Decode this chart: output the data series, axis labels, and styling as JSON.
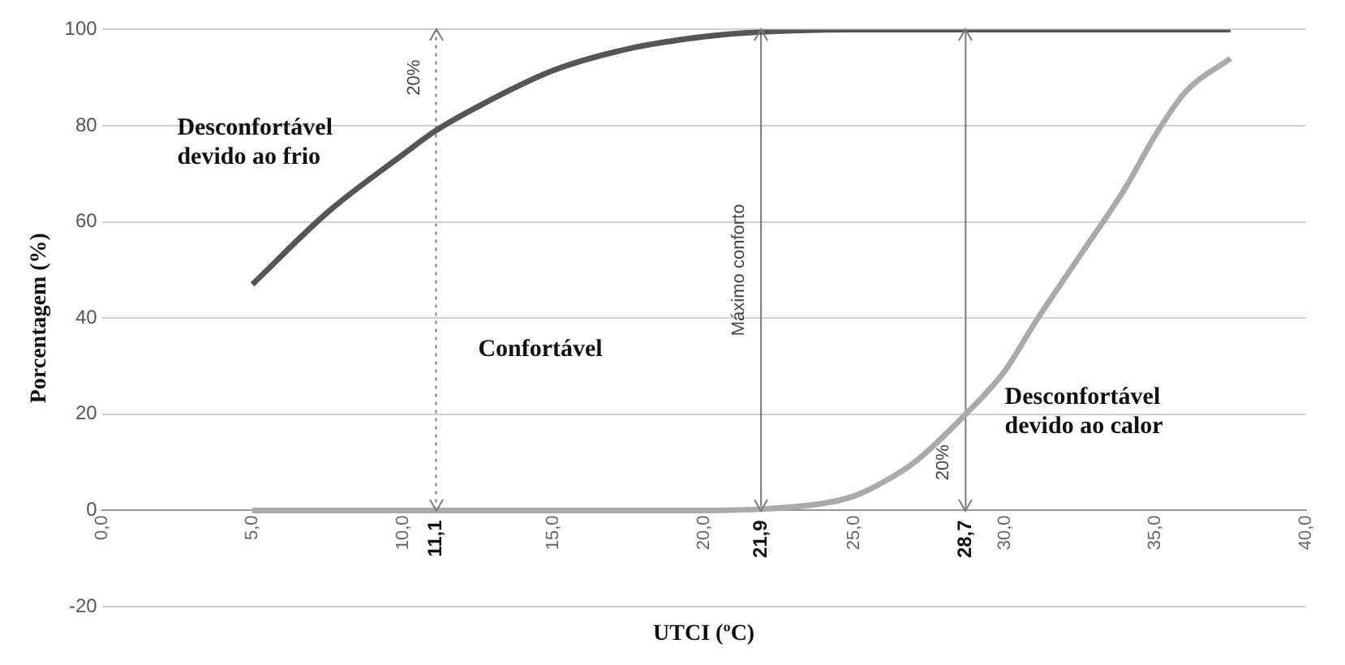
{
  "chart_data": {
    "type": "line",
    "xlabel": "UTCI (ºC)",
    "ylabel": "Porcentagem (%)",
    "xlim": [
      0,
      40
    ],
    "ylim": [
      -20,
      100
    ],
    "xticks": [
      {
        "value": 0,
        "label": "0,0"
      },
      {
        "value": 5,
        "label": "5,0"
      },
      {
        "value": 10,
        "label": "10,0"
      },
      {
        "value": 15,
        "label": "15,0"
      },
      {
        "value": 20,
        "label": "20,0"
      },
      {
        "value": 25,
        "label": "25,0"
      },
      {
        "value": 30,
        "label": "30,0"
      },
      {
        "value": 35,
        "label": "35,0"
      },
      {
        "value": 40,
        "label": "40,0"
      }
    ],
    "yticks": [
      -20,
      0,
      20,
      40,
      60,
      80,
      100
    ],
    "grid": "y",
    "legend": false,
    "marker": "none",
    "line_style": "solid",
    "series": [
      {
        "color": "#555555",
        "x": [
          5,
          7.5,
          10,
          11.1,
          12.5,
          15,
          17.5,
          20,
          21.9,
          25,
          30,
          37.5
        ],
        "values": [
          47,
          62,
          74,
          79,
          84,
          91.5,
          96,
          98.5,
          99.5,
          100,
          100,
          100
        ]
      },
      {
        "color": "#aaaaaa",
        "x": [
          5,
          10,
          15,
          20,
          22,
          24,
          25,
          26,
          27,
          28.7,
          30,
          31,
          32.5,
          34,
          35,
          36,
          37.5
        ],
        "values": [
          0,
          0,
          0,
          0,
          0.3,
          1.5,
          3,
          6,
          10,
          20,
          29,
          39,
          53,
          67,
          78,
          87,
          94
        ]
      }
    ],
    "ref_lines": [
      {
        "axis": "x",
        "value": 11.1,
        "label": "11,1",
        "line_style": "dotted"
      },
      {
        "axis": "x",
        "value": 21.9,
        "label": "21,9"
      },
      {
        "axis": "x",
        "value": 28.7,
        "label": "28,7"
      }
    ],
    "annotations": [
      "Desconfortável\ndevido ao frio",
      "Confortável",
      "Desconfortável\ndevido ao calor",
      {
        "text": "20%",
        "x": 11.1,
        "y": 90
      },
      {
        "text": "Máximo conforto",
        "x": 21.9,
        "y": 50
      },
      {
        "text": "20%",
        "x": 28.7,
        "y": 10
      }
    ]
  }
}
